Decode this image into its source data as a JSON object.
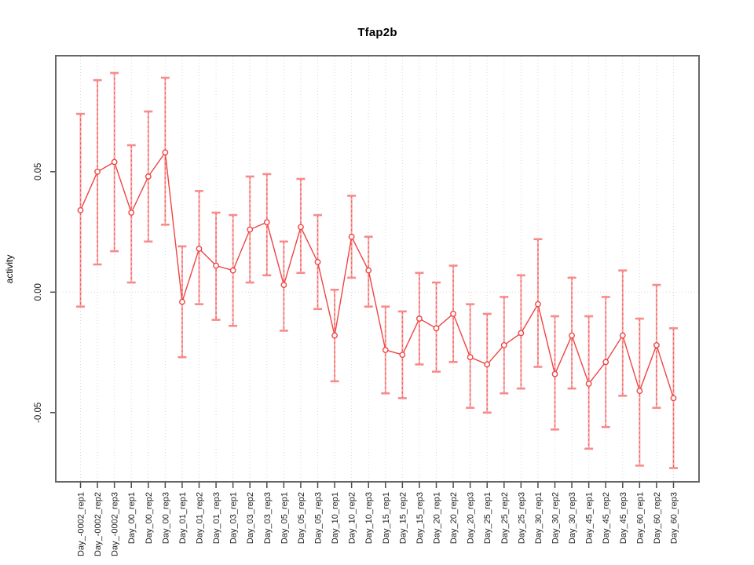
{
  "title": "Tfap2b",
  "ylabel": "activity",
  "chart_data": {
    "type": "line",
    "title": "Tfap2b",
    "xlabel": "",
    "ylabel": "activity",
    "legend": "none",
    "grid": "vertical dotted line at every category; horizontal dotted line at y=0",
    "marker": "open-circle",
    "error_bars": true,
    "ylim": [
      -0.079,
      0.098
    ],
    "yticks": [
      -0.05,
      0.0,
      0.05
    ],
    "ytick_labels": [
      "-0.05",
      "0.00",
      "0.05"
    ],
    "categories": [
      "Day_-0002_rep1",
      "Day_-0002_rep2",
      "Day_-0002_rep3",
      "Day_00_rep1",
      "Day_00_rep2",
      "Day_00_rep3",
      "Day_01_rep1",
      "Day_01_rep2",
      "Day_01_rep3",
      "Day_03_rep1",
      "Day_03_rep2",
      "Day_03_rep3",
      "Day_05_rep1",
      "Day_05_rep2",
      "Day_05_rep3",
      "Day_10_rep1",
      "Day_10_rep2",
      "Day_10_rep3",
      "Day_15_rep1",
      "Day_15_rep2",
      "Day_15_rep3",
      "Day_20_rep1",
      "Day_20_rep2",
      "Day_20_rep3",
      "Day_25_rep1",
      "Day_25_rep2",
      "Day_25_rep3",
      "Day_30_rep1",
      "Day_30_rep2",
      "Day_30_rep3",
      "Day_45_rep1",
      "Day_45_rep2",
      "Day_45_rep3",
      "Day_60_rep1",
      "Day_60_rep2",
      "Day_60_rep3"
    ],
    "series": [
      {
        "name": "Tfap2b activity",
        "values": [
          0.034,
          0.05,
          0.054,
          0.033,
          0.048,
          0.058,
          -0.004,
          0.018,
          0.011,
          0.009,
          0.026,
          0.029,
          0.003,
          0.027,
          0.0125,
          -0.018,
          0.023,
          0.009,
          -0.024,
          -0.026,
          -0.011,
          -0.015,
          -0.009,
          -0.027,
          -0.03,
          -0.022,
          -0.017,
          -0.005,
          -0.034,
          -0.018,
          -0.038,
          -0.029,
          -0.018,
          -0.041,
          -0.022,
          -0.044
        ],
        "upper": [
          0.074,
          0.088,
          0.091,
          0.061,
          0.075,
          0.089,
          0.019,
          0.042,
          0.033,
          0.032,
          0.048,
          0.049,
          0.021,
          0.047,
          0.032,
          0.001,
          0.04,
          0.023,
          -0.006,
          -0.008,
          0.008,
          0.004,
          0.011,
          -0.005,
          -0.009,
          -0.002,
          0.007,
          0.022,
          -0.01,
          0.006,
          -0.01,
          -0.002,
          0.009,
          -0.011,
          0.003,
          -0.015
        ],
        "lower": [
          -0.006,
          0.0115,
          0.017,
          0.004,
          0.021,
          0.028,
          -0.027,
          -0.005,
          -0.0115,
          -0.014,
          0.004,
          0.007,
          -0.016,
          0.008,
          -0.007,
          -0.037,
          0.006,
          -0.006,
          -0.042,
          -0.044,
          -0.03,
          -0.033,
          -0.029,
          -0.048,
          -0.05,
          -0.042,
          -0.04,
          -0.031,
          -0.057,
          -0.04,
          -0.065,
          -0.056,
          -0.043,
          -0.072,
          -0.048,
          -0.073
        ]
      }
    ],
    "colors": {
      "line": "#ef4444",
      "marker": "#ef4444",
      "error_bar_stem": "#fba4a4",
      "error_bar_dash": "#ee5555",
      "error_bar_cap": "#f78b8b",
      "grid": "#d9d9d9",
      "frame": "#666666",
      "tick": "#4a4a4a",
      "text": "#1c1c1c"
    }
  }
}
